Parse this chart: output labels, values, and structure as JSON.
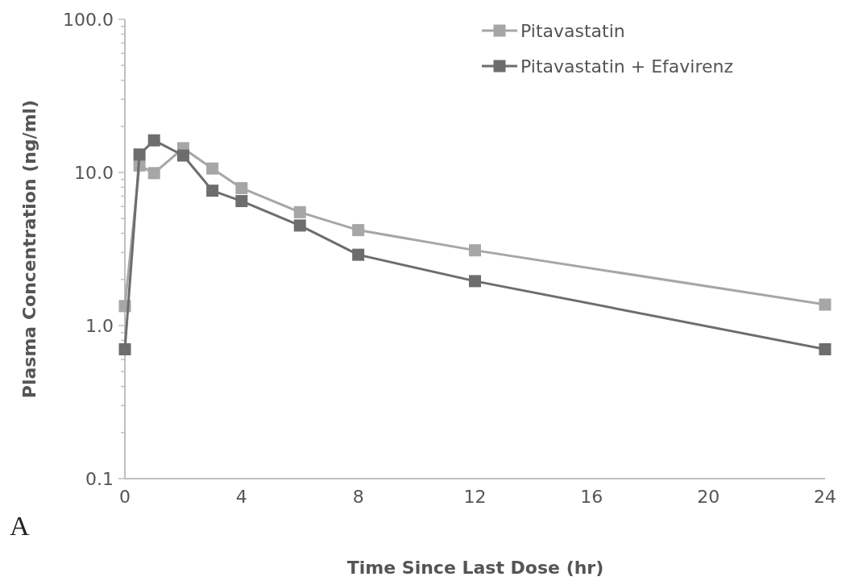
{
  "chart_data": {
    "type": "line",
    "xlabel": "Time Since Last Dose (hr)",
    "ylabel": "Plasma Concentration (ng/ml)",
    "annotations": [
      "A"
    ],
    "x": [
      0,
      0.5,
      1,
      2,
      3,
      4,
      6,
      8,
      12,
      24
    ],
    "series": [
      {
        "name": "Pitavastatin",
        "color": "#a6a6a6",
        "values": [
          1.34,
          11.1,
          9.9,
          14.4,
          10.6,
          7.9,
          5.5,
          4.2,
          3.1,
          1.37
        ]
      },
      {
        "name": "Pitavastatin + Efavirenz",
        "color": "#6d6d6d",
        "values": [
          0.7,
          13.1,
          16.2,
          12.9,
          7.6,
          6.5,
          4.5,
          2.9,
          1.95,
          0.7
        ]
      }
    ],
    "log": "y",
    "xlim": [
      0,
      24
    ],
    "ylim": [
      0.1,
      100
    ],
    "xticks": [
      0,
      4,
      8,
      12,
      16,
      20,
      24
    ],
    "yticks": [
      {
        "value": 0.1,
        "label": "0.1"
      },
      {
        "value": 0.2,
        "label": null
      },
      {
        "value": 0.3,
        "label": null
      },
      {
        "value": 0.4,
        "label": null
      },
      {
        "value": 0.5,
        "label": null
      },
      {
        "value": 0.6,
        "label": null
      },
      {
        "value": 0.7,
        "label": null
      },
      {
        "value": 0.8,
        "label": null
      },
      {
        "value": 0.9,
        "label": null
      },
      {
        "value": 1,
        "label": "1.0"
      },
      {
        "value": 2,
        "label": null
      },
      {
        "value": 3,
        "label": null
      },
      {
        "value": 4,
        "label": null
      },
      {
        "value": 5,
        "label": null
      },
      {
        "value": 6,
        "label": null
      },
      {
        "value": 7,
        "label": null
      },
      {
        "value": 8,
        "label": null
      },
      {
        "value": 9,
        "label": null
      },
      {
        "value": 10,
        "label": "10.0"
      },
      {
        "value": 20,
        "label": null
      },
      {
        "value": 30,
        "label": null
      },
      {
        "value": 40,
        "label": null
      },
      {
        "value": 50,
        "label": null
      },
      {
        "value": 60,
        "label": null
      },
      {
        "value": 70,
        "label": null
      },
      {
        "value": 80,
        "label": null
      },
      {
        "value": 90,
        "label": null
      },
      {
        "value": 100,
        "label": "100.0"
      }
    ],
    "grid": false,
    "legend": "top right",
    "marker": "square",
    "line_style": "solid"
  }
}
